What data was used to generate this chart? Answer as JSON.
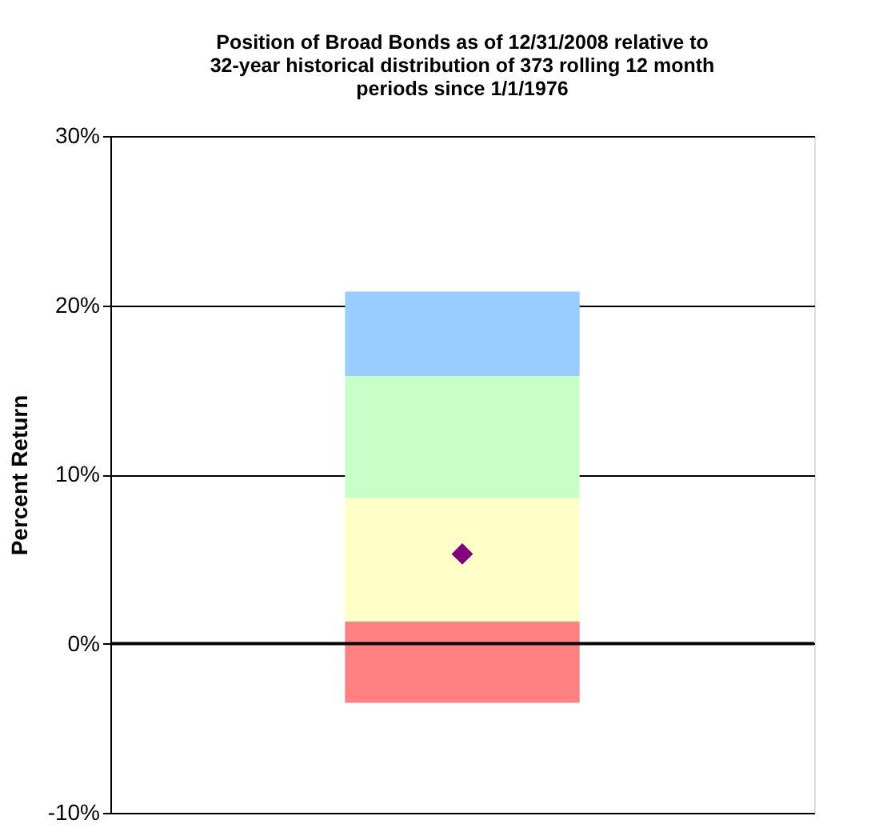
{
  "chart_data": {
    "type": "bar",
    "title": "Position of Broad Bonds as of 12/31/2008 relative to 32-year historical distribution of 373 rolling 12 month periods since 1/1/1976",
    "ylabel": "Percent Return",
    "categories": [
      null
    ],
    "series": [
      {
        "color": "#ff8080",
        "base": [
          -3.5
        ],
        "values": [
          4.8
        ]
      },
      {
        "color": "#ffffc8",
        "base": [
          1.3
        ],
        "values": [
          7.3
        ]
      },
      {
        "color": "#c8ffc8",
        "base": [
          8.6
        ],
        "values": [
          7.2
        ]
      },
      {
        "color": "#99ccff",
        "base": [
          15.8
        ],
        "values": [
          5.0
        ]
      },
      {
        "type": "scatter",
        "x": [
          null
        ],
        "marker": "diamond",
        "color": "#800080",
        "values": [
          5.3
        ]
      }
    ],
    "ylim": [
      -10,
      30
    ],
    "yticks": [
      {
        "value": -10,
        "label": "-10%"
      },
      {
        "value": 0,
        "label": "0%"
      },
      {
        "value": 10,
        "label": "10%"
      },
      {
        "value": 20,
        "label": "20%"
      },
      {
        "value": 30,
        "label": "30%"
      }
    ],
    "grid": "y",
    "tick_labels": "y",
    "ref_lines": [
      {
        "axis": "y",
        "value": 0,
        "color": "#000000"
      }
    ]
  }
}
